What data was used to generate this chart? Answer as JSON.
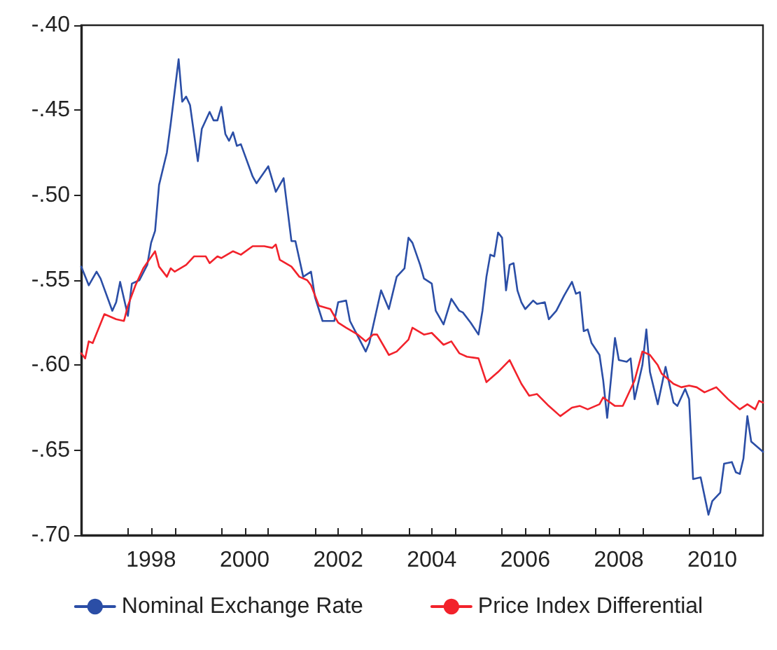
{
  "chart_data": {
    "type": "line",
    "xlim": [
      "1997-01",
      "2011-08"
    ],
    "xticks": [
      {
        "value": "1997-01",
        "label": null
      },
      {
        "value": "1998-01",
        "label": null
      },
      {
        "value": "1998-07",
        "label": "1998"
      },
      {
        "value": "1999-01",
        "label": null
      },
      {
        "value": "2000-01",
        "label": null
      },
      {
        "value": "2000-07",
        "label": "2000"
      },
      {
        "value": "2001-01",
        "label": null
      },
      {
        "value": "2002-01",
        "label": null
      },
      {
        "value": "2002-07",
        "label": "2002"
      },
      {
        "value": "2003-01",
        "label": null
      },
      {
        "value": "2004-01",
        "label": null
      },
      {
        "value": "2004-07",
        "label": "2004"
      },
      {
        "value": "2005-01",
        "label": null
      },
      {
        "value": "2006-01",
        "label": null
      },
      {
        "value": "2006-07",
        "label": "2006"
      },
      {
        "value": "2007-01",
        "label": null
      },
      {
        "value": "2008-01",
        "label": null
      },
      {
        "value": "2008-07",
        "label": "2008"
      },
      {
        "value": "2009-01",
        "label": null
      },
      {
        "value": "2010-01",
        "label": null
      },
      {
        "value": "2010-07",
        "label": "2010"
      },
      {
        "value": "2011-01",
        "label": null
      }
    ],
    "ylim": [
      -0.7,
      -0.4
    ],
    "yticks": [
      {
        "value": -0.7,
        "label": "-.70"
      },
      {
        "value": -0.65,
        "label": "-.65"
      },
      {
        "value": -0.6,
        "label": "-.60"
      },
      {
        "value": -0.55,
        "label": "-.55"
      },
      {
        "value": -0.5,
        "label": "-.50"
      },
      {
        "value": -0.45,
        "label": "-.45"
      },
      {
        "value": -0.4,
        "label": "-.40"
      }
    ],
    "grid": false,
    "legend": "bottom",
    "marker": "none",
    "line_style": "solid",
    "series": [
      {
        "name": "Nominal Exchange Rate",
        "color": "#2b4ea6",
        "x": [
          "1997-01",
          "1997-03",
          "1997-05",
          "1997-06",
          "1997-09",
          "1997-10",
          "1997-11",
          "1998-01",
          "1998-02",
          "1998-04",
          "1998-06",
          "1998-07",
          "1998-08",
          "1998-09",
          "1998-11",
          "1998-12",
          "1999-02",
          "1999-03",
          "1999-04",
          "1999-05",
          "1999-07",
          "1999-08",
          "1999-10",
          "1999-11",
          "1999-12",
          "2000-01",
          "2000-02",
          "2000-03",
          "2000-04",
          "2000-05",
          "2000-06",
          "2000-09",
          "2000-10",
          "2001-01",
          "2001-03",
          "2001-05",
          "2001-07",
          "2001-08",
          "2001-10",
          "2001-12",
          "2002-01",
          "2002-03",
          "2002-06",
          "2002-07",
          "2002-09",
          "2002-10",
          "2003-02",
          "2003-03",
          "2003-06",
          "2003-08",
          "2003-10",
          "2003-12",
          "2004-01",
          "2004-02",
          "2004-04",
          "2004-05",
          "2004-07",
          "2004-08",
          "2004-10",
          "2004-12",
          "2005-02",
          "2005-03",
          "2005-05",
          "2005-07",
          "2005-08",
          "2005-09",
          "2005-10",
          "2005-11",
          "2005-12",
          "2006-01",
          "2006-02",
          "2006-03",
          "2006-04",
          "2006-05",
          "2006-06",
          "2006-07",
          "2006-09",
          "2006-10",
          "2006-12",
          "2007-01",
          "2007-03",
          "2007-05",
          "2007-07",
          "2007-08",
          "2007-09",
          "2007-10",
          "2007-11",
          "2007-12",
          "2008-02",
          "2008-03",
          "2008-04",
          "2008-06",
          "2008-07",
          "2008-09",
          "2008-10",
          "2008-11",
          "2009-01",
          "2009-02",
          "2009-03",
          "2009-05",
          "2009-07",
          "2009-09",
          "2009-10",
          "2009-12",
          "2010-01",
          "2010-02",
          "2010-04",
          "2010-06",
          "2010-07",
          "2010-09",
          "2010-10",
          "2010-12",
          "2011-01",
          "2011-02",
          "2011-03",
          "2011-04",
          "2011-05",
          "2011-08"
        ],
        "values": [
          -0.542,
          -0.553,
          -0.545,
          -0.549,
          -0.568,
          -0.563,
          -0.551,
          -0.571,
          -0.552,
          -0.55,
          -0.541,
          -0.528,
          -0.521,
          -0.494,
          -0.475,
          -0.458,
          -0.42,
          -0.445,
          -0.442,
          -0.447,
          -0.48,
          -0.461,
          -0.451,
          -0.456,
          -0.456,
          -0.448,
          -0.464,
          -0.468,
          -0.463,
          -0.471,
          -0.47,
          -0.489,
          -0.493,
          -0.483,
          -0.498,
          -0.49,
          -0.527,
          -0.527,
          -0.548,
          -0.545,
          -0.56,
          -0.574,
          -0.574,
          -0.563,
          -0.562,
          -0.574,
          -0.592,
          -0.587,
          -0.556,
          -0.567,
          -0.548,
          -0.543,
          -0.525,
          -0.528,
          -0.541,
          -0.549,
          -0.552,
          -0.568,
          -0.576,
          -0.561,
          -0.568,
          -0.569,
          -0.575,
          -0.582,
          -0.568,
          -0.548,
          -0.535,
          -0.536,
          -0.522,
          -0.525,
          -0.556,
          -0.541,
          -0.54,
          -0.556,
          -0.563,
          -0.567,
          -0.562,
          -0.564,
          -0.563,
          -0.573,
          -0.568,
          -0.559,
          -0.551,
          -0.558,
          -0.557,
          -0.58,
          -0.579,
          -0.587,
          -0.594,
          -0.609,
          -0.631,
          -0.584,
          -0.597,
          -0.598,
          -0.596,
          -0.62,
          -0.6,
          -0.579,
          -0.604,
          -0.623,
          -0.601,
          -0.622,
          -0.624,
          -0.614,
          -0.62,
          -0.667,
          -0.666,
          -0.688,
          -0.68,
          -0.675,
          -0.658,
          -0.657,
          -0.663,
          -0.664,
          -0.655,
          -0.63,
          -0.645,
          -0.651
        ]
      },
      {
        "name": "Price Index Differential",
        "color": "#f2222b",
        "x": [
          "1997-01",
          "1997-02",
          "1997-03",
          "1997-04",
          "1997-07",
          "1997-10",
          "1997-12",
          "1998-01",
          "1998-03",
          "1998-05",
          "1998-08",
          "1998-09",
          "1998-11",
          "1998-12",
          "1999-01",
          "1999-04",
          "1999-06",
          "1999-09",
          "1999-10",
          "1999-12",
          "2000-01",
          "2000-04",
          "2000-06",
          "2000-09",
          "2000-12",
          "2001-02",
          "2001-03",
          "2001-04",
          "2001-07",
          "2001-09",
          "2001-11",
          "2001-12",
          "2002-02",
          "2002-05",
          "2002-07",
          "2002-09",
          "2002-12",
          "2003-02",
          "2003-04",
          "2003-05",
          "2003-08",
          "2003-10",
          "2004-01",
          "2004-02",
          "2004-05",
          "2004-07",
          "2004-10",
          "2004-12",
          "2005-02",
          "2005-04",
          "2005-07",
          "2005-09",
          "2005-12",
          "2006-03",
          "2006-06",
          "2006-08",
          "2006-10",
          "2007-01",
          "2007-04",
          "2007-07",
          "2007-09",
          "2007-11",
          "2008-02",
          "2008-03",
          "2008-06",
          "2008-08",
          "2008-11",
          "2009-01",
          "2009-03",
          "2009-05",
          "2009-06",
          "2009-09",
          "2009-11",
          "2010-01",
          "2010-03",
          "2010-05",
          "2010-08",
          "2010-11",
          "2011-02",
          "2011-04",
          "2011-06",
          "2011-07",
          "2011-08"
        ],
        "values": [
          -0.593,
          -0.596,
          -0.586,
          -0.587,
          -0.57,
          -0.573,
          -0.574,
          -0.565,
          -0.553,
          -0.543,
          -0.533,
          -0.542,
          -0.548,
          -0.543,
          -0.545,
          -0.541,
          -0.536,
          -0.536,
          -0.54,
          -0.536,
          -0.537,
          -0.533,
          -0.535,
          -0.53,
          -0.53,
          -0.531,
          -0.529,
          -0.538,
          -0.542,
          -0.548,
          -0.55,
          -0.553,
          -0.565,
          -0.567,
          -0.575,
          -0.578,
          -0.582,
          -0.586,
          -0.582,
          -0.582,
          -0.594,
          -0.592,
          -0.585,
          -0.578,
          -0.582,
          -0.581,
          -0.588,
          -0.586,
          -0.593,
          -0.595,
          -0.596,
          -0.61,
          -0.604,
          -0.597,
          -0.611,
          -0.618,
          -0.617,
          -0.624,
          -0.63,
          -0.625,
          -0.624,
          -0.626,
          -0.623,
          -0.619,
          -0.624,
          -0.624,
          -0.609,
          -0.592,
          -0.594,
          -0.6,
          -0.605,
          -0.611,
          -0.613,
          -0.612,
          -0.613,
          -0.616,
          -0.613,
          -0.62,
          -0.626,
          -0.623,
          -0.626,
          -0.621,
          -0.622
        ]
      }
    ]
  }
}
